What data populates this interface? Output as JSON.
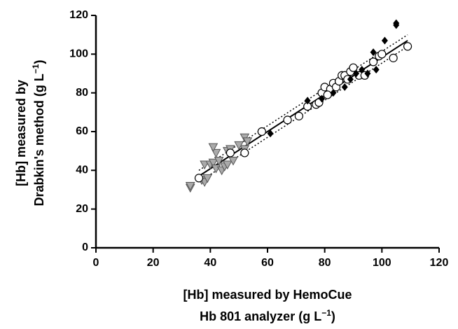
{
  "chart_data": {
    "type": "scatter",
    "x_label": [
      "[Hb] measured by HemoCue",
      "Hb 801 analyzer (g L",
      "−1",
      ")"
    ],
    "y_label": [
      "[Hb] measured by",
      "Drabkin's  method (g L",
      "−1",
      ")"
    ],
    "xlim": [
      0,
      120
    ],
    "ylim": [
      0,
      120
    ],
    "xticks": [
      0,
      20,
      40,
      60,
      80,
      100,
      120
    ],
    "yticks": [
      0,
      20,
      40,
      60,
      80,
      100,
      120
    ],
    "series": [
      {
        "marker": "triangle-down",
        "color": "#aaaaaa",
        "x": [
          33,
          33,
          37,
          38,
          39,
          38,
          40,
          41,
          42,
          43,
          44,
          45,
          46,
          47,
          42,
          41,
          52,
          53,
          52,
          50,
          46,
          48
        ],
        "values": [
          31,
          32,
          35,
          34,
          36,
          43,
          43,
          44,
          41,
          45,
          40,
          42,
          50,
          51,
          49,
          52,
          57,
          55,
          51,
          53,
          43,
          45
        ]
      },
      {
        "marker": "circle",
        "color": "#ffffff",
        "x": [
          36,
          47,
          52,
          58,
          67,
          71,
          74,
          77,
          78,
          79,
          80,
          82,
          83,
          84,
          85,
          86,
          87,
          88,
          89,
          90,
          92,
          94,
          97,
          99,
          100,
          104,
          109,
          81
        ],
        "values": [
          36,
          49,
          49,
          60,
          66,
          68,
          73,
          74,
          75,
          80,
          83,
          82,
          85,
          83,
          86,
          89,
          89,
          87,
          91,
          93,
          89,
          89,
          96,
          99,
          100,
          98,
          104,
          79
        ]
      },
      {
        "marker": "diamond",
        "color": "#000000",
        "x": [
          61,
          74,
          79,
          83,
          87,
          89,
          91,
          93,
          95,
          97,
          98,
          101,
          105,
          105
        ],
        "values": [
          59,
          76,
          77,
          80,
          83,
          87,
          90,
          92,
          90,
          101,
          92,
          107,
          116,
          115
        ]
      }
    ],
    "fit_lines": [
      {
        "dash": false,
        "x": [
          36,
          109
        ],
        "values": [
          37,
          107
        ]
      },
      {
        "dash": true,
        "x": [
          36,
          109
        ],
        "values": [
          40,
          110
        ]
      },
      {
        "dash": true,
        "x": [
          36,
          109
        ],
        "values": [
          34,
          104
        ]
      }
    ]
  }
}
